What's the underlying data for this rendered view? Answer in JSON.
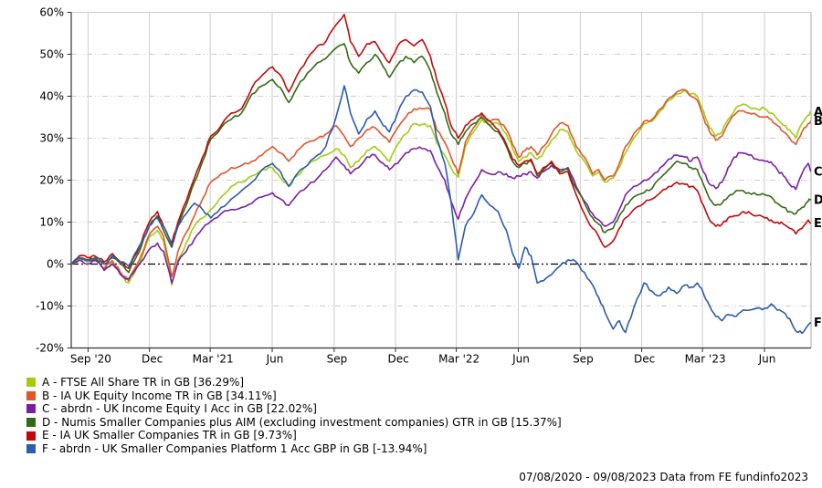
{
  "chart": {
    "y_axis": {
      "values": [
        60,
        50,
        40,
        30,
        20,
        10,
        0,
        -10,
        -20
      ],
      "labels": [
        "60%",
        "50%",
        "40%",
        "30%",
        "20%",
        "10%",
        "0%",
        "-10%",
        "-20%"
      ]
    },
    "x_axis": {
      "ticks": [
        {
          "t": 0.82,
          "label": "Sep '20"
        },
        {
          "t": 3.81,
          "label": "Dec"
        },
        {
          "t": 6.77,
          "label": "Mar '21"
        },
        {
          "t": 9.79,
          "label": "Jun"
        },
        {
          "t": 12.81,
          "label": "Sep"
        },
        {
          "t": 15.8,
          "label": "Dec"
        },
        {
          "t": 18.76,
          "label": "Mar '22"
        },
        {
          "t": 21.78,
          "label": "Jun"
        },
        {
          "t": 24.8,
          "label": "Sep"
        },
        {
          "t": 27.79,
          "label": "Dec"
        },
        {
          "t": 30.75,
          "label": "Mar '23"
        },
        {
          "t": 33.77,
          "label": "Jun"
        }
      ]
    },
    "colors": {
      "grid": "#cccccc",
      "zero_line": "#000000",
      "axis": "#333333",
      "top_border": "#cccccc",
      "right_border": "#aaaaaa"
    }
  },
  "chart_data": {
    "type": "line",
    "title": "",
    "x_unit": "months since 07/08/2020",
    "x_range": [
      0,
      36.04
    ],
    "ylim": [
      -20,
      60
    ],
    "grid": true,
    "legend_position": "bottom-left",
    "x": [
      0,
      0.4,
      0.8,
      1.2,
      1.6,
      2.0,
      2.4,
      2.8,
      3.1,
      3.4,
      3.8,
      4.2,
      4.5,
      4.9,
      5.2,
      5.6,
      6.0,
      6.4,
      6.8,
      7.3,
      7.8,
      8.3,
      8.8,
      9.3,
      9.8,
      10.2,
      10.6,
      11.0,
      11.5,
      12.0,
      12.4,
      12.9,
      13.3,
      13.6,
      14.0,
      14.4,
      14.8,
      15.2,
      15.5,
      15.9,
      16.3,
      16.7,
      17.1,
      17.5,
      17.8,
      18.2,
      18.5,
      18.85,
      19.2,
      19.6,
      20.0,
      20.4,
      20.8,
      21.2,
      21.5,
      21.8,
      22.1,
      22.4,
      22.7,
      23.0,
      23.4,
      23.8,
      24.2,
      24.6,
      25.0,
      25.4,
      25.7,
      26.0,
      26.4,
      26.7,
      27.0,
      27.4,
      27.9,
      28.3,
      28.7,
      29.1,
      29.5,
      29.9,
      30.2,
      30.5,
      30.8,
      31.1,
      31.4,
      31.7,
      32.0,
      32.3,
      32.6,
      33.0,
      33.4,
      33.8,
      34.1,
      34.4,
      34.7,
      35.0,
      35.3,
      35.6,
      35.9,
      36.04
    ],
    "series": [
      {
        "id": "A",
        "name": "FTSE All Share TR in GB",
        "final_return_pct": 36.29,
        "color": "#9fce10",
        "values": [
          0,
          1.5,
          0.5,
          1.8,
          -1.5,
          0.5,
          -2.5,
          -4.5,
          -2.0,
          1.0,
          6.5,
          8.0,
          5.5,
          -5.0,
          1.0,
          5.0,
          9.0,
          11.0,
          13.0,
          16.0,
          18.5,
          19.5,
          21.0,
          22.5,
          23.0,
          20.5,
          18.5,
          21.0,
          23.5,
          25.0,
          26.0,
          27.5,
          26.0,
          23.0,
          24.5,
          27.0,
          28.0,
          26.0,
          24.5,
          28.5,
          31.0,
          33.5,
          33.3,
          33.0,
          29.0,
          26.0,
          23.0,
          20.7,
          28.0,
          31.5,
          34.5,
          33.0,
          33.5,
          31.0,
          27.5,
          24.5,
          25.5,
          26.5,
          25.0,
          26.5,
          29.5,
          32.0,
          31.5,
          27.0,
          24.5,
          21.0,
          22.0,
          19.5,
          20.5,
          23.0,
          26.5,
          30.0,
          33.5,
          34.0,
          36.5,
          39.0,
          40.5,
          41.5,
          40.5,
          40.0,
          36.5,
          32.5,
          30.5,
          31.5,
          34.5,
          36.5,
          37.8,
          37.5,
          37.0,
          37.0,
          36.0,
          34.5,
          33.0,
          32.0,
          30.0,
          33.5,
          35.5,
          36.29
        ]
      },
      {
        "id": "B",
        "name": "IA UK Equity Income TR in GB",
        "final_return_pct": 34.11,
        "color": "#e0562a",
        "values": [
          0,
          1.5,
          0.8,
          1.2,
          -1.0,
          0.8,
          -2.0,
          -4.0,
          -1.0,
          2.0,
          7.0,
          9.0,
          6.5,
          -3.0,
          3.0,
          7.5,
          11.5,
          15.5,
          19.5,
          21.5,
          23.0,
          23.5,
          24.5,
          26.0,
          28.0,
          26.5,
          24.5,
          27.0,
          29.0,
          30.0,
          31.0,
          33.0,
          30.5,
          28.0,
          30.0,
          32.0,
          32.5,
          30.5,
          29.0,
          32.5,
          35.0,
          37.0,
          37.0,
          36.8,
          32.0,
          29.0,
          25.5,
          21.5,
          29.0,
          32.5,
          35.5,
          34.0,
          34.5,
          32.0,
          28.5,
          25.5,
          27.0,
          28.0,
          26.0,
          28.0,
          31.0,
          33.5,
          33.0,
          28.0,
          25.5,
          21.5,
          22.5,
          20.0,
          21.0,
          24.0,
          28.0,
          31.0,
          34.0,
          34.5,
          37.0,
          39.5,
          41.0,
          41.5,
          40.0,
          39.0,
          35.0,
          31.5,
          29.5,
          30.5,
          33.5,
          35.5,
          36.5,
          36.0,
          35.5,
          35.0,
          34.5,
          33.0,
          31.5,
          30.0,
          28.5,
          31.5,
          33.5,
          34.11
        ]
      },
      {
        "id": "C",
        "name": "abrdn - UK Income Equity I Acc in GB",
        "final_return_pct": 22.02,
        "color": "#7b1fa2",
        "values": [
          0,
          1.0,
          0.0,
          0.8,
          -1.5,
          0.0,
          -2.5,
          -3.5,
          -1.5,
          0.5,
          3.5,
          5.0,
          3.0,
          -4.5,
          0.5,
          3.0,
          6.0,
          8.5,
          10.2,
          12.0,
          13.0,
          13.5,
          14.5,
          16.0,
          17.0,
          15.5,
          14.0,
          16.5,
          18.5,
          20.5,
          22.5,
          25.5,
          23.5,
          21.5,
          23.0,
          25.5,
          26.0,
          24.0,
          22.5,
          24.0,
          26.5,
          27.5,
          27.5,
          27.0,
          23.5,
          20.0,
          15.0,
          10.7,
          15.5,
          19.0,
          22.5,
          21.5,
          22.0,
          21.5,
          20.5,
          21.0,
          21.5,
          22.0,
          20.5,
          22.0,
          23.5,
          22.5,
          23.0,
          18.5,
          15.0,
          12.0,
          10.5,
          9.0,
          10.0,
          13.0,
          16.5,
          18.5,
          20.0,
          21.0,
          23.0,
          25.0,
          26.0,
          25.5,
          24.5,
          25.5,
          22.0,
          19.0,
          18.0,
          19.5,
          23.0,
          25.5,
          26.5,
          26.0,
          25.0,
          24.5,
          24.3,
          22.5,
          21.0,
          19.0,
          17.8,
          21.5,
          24.0,
          22.02
        ]
      },
      {
        "id": "D",
        "name": "Numis Smaller Companies plus AIM (excluding investment companies) GTR in GB",
        "final_return_pct": 15.37,
        "color": "#336b12",
        "values": [
          0,
          1.5,
          0.8,
          1.2,
          0.0,
          1.5,
          0.0,
          -2.0,
          1.0,
          4.0,
          9.0,
          11.5,
          8.0,
          4.0,
          9.0,
          14.0,
          19.5,
          24.5,
          29.8,
          32.5,
          34.5,
          36.0,
          40.5,
          42.5,
          44.0,
          42.0,
          38.5,
          42.0,
          45.5,
          48.0,
          49.0,
          51.5,
          52.5,
          48.0,
          45.5,
          48.0,
          50.0,
          47.0,
          44.5,
          47.5,
          49.5,
          48.0,
          49.5,
          46.0,
          41.0,
          36.0,
          31.0,
          28.5,
          31.5,
          33.5,
          35.0,
          33.0,
          31.5,
          28.0,
          24.5,
          23.0,
          24.0,
          24.5,
          21.0,
          22.5,
          24.0,
          22.0,
          22.5,
          18.0,
          14.5,
          11.0,
          9.5,
          7.5,
          8.5,
          11.5,
          14.0,
          16.0,
          17.0,
          18.0,
          20.5,
          22.5,
          24.5,
          24.0,
          23.0,
          22.5,
          19.0,
          15.5,
          14.0,
          14.5,
          16.0,
          17.0,
          17.5,
          17.0,
          16.5,
          16.5,
          16.0,
          14.5,
          13.5,
          12.5,
          12.0,
          13.5,
          15.0,
          15.37
        ]
      },
      {
        "id": "E",
        "name": "IA UK Smaller Companies TR in GB",
        "final_return_pct": 9.73,
        "color": "#c00a0a",
        "values": [
          0,
          2.0,
          1.5,
          1.8,
          0.5,
          2.5,
          0.5,
          -1.0,
          2.0,
          5.0,
          10.0,
          12.5,
          9.0,
          5.0,
          10.0,
          15.0,
          20.5,
          25.5,
          30.5,
          33.0,
          36.0,
          37.0,
          42.0,
          45.0,
          47.0,
          45.0,
          41.0,
          45.0,
          49.0,
          52.0,
          53.0,
          57.0,
          59.5,
          53.0,
          49.5,
          52.5,
          53.0,
          50.0,
          48.0,
          52.0,
          53.5,
          52.0,
          53.5,
          49.5,
          44.0,
          38.5,
          33.0,
          30.0,
          33.0,
          34.5,
          36.0,
          34.0,
          32.0,
          28.5,
          25.0,
          23.5,
          24.5,
          25.0,
          21.5,
          23.0,
          24.5,
          21.5,
          22.0,
          16.5,
          12.0,
          8.5,
          6.5,
          4.0,
          5.5,
          8.5,
          11.0,
          13.0,
          14.5,
          15.5,
          17.0,
          18.5,
          19.5,
          19.0,
          18.5,
          17.5,
          14.0,
          10.5,
          9.0,
          9.5,
          11.0,
          11.5,
          12.0,
          12.5,
          11.5,
          11.0,
          10.5,
          10.0,
          9.5,
          8.5,
          7.2,
          8.5,
          10.5,
          9.73
        ]
      },
      {
        "id": "F",
        "name": "abrdn - UK Smaller Companies Platform 1 Acc GBP in GB",
        "final_return_pct": -13.94,
        "color": "#2b5cad",
        "values": [
          0,
          1.5,
          1.0,
          1.5,
          0.0,
          2.0,
          0.5,
          -0.5,
          2.5,
          5.0,
          9.0,
          11.0,
          9.0,
          4.5,
          9.0,
          12.0,
          14.5,
          13.0,
          11.0,
          13.5,
          15.5,
          17.5,
          19.5,
          22.5,
          24.0,
          22.0,
          18.5,
          21.5,
          23.5,
          26.0,
          28.0,
          35.0,
          42.5,
          36.0,
          31.0,
          34.5,
          36.5,
          33.0,
          31.5,
          36.0,
          40.0,
          41.5,
          41.0,
          37.5,
          30.0,
          24.0,
          15.0,
          1.0,
          9.0,
          12.0,
          16.5,
          14.0,
          12.5,
          8.0,
          2.5,
          -1.0,
          4.0,
          2.0,
          -4.5,
          -4.0,
          -2.5,
          -0.5,
          1.0,
          0.5,
          -2.0,
          -5.0,
          -8.0,
          -11.5,
          -15.5,
          -13.5,
          -16.3,
          -10.5,
          -4.5,
          -6.5,
          -7.5,
          -5.5,
          -7.0,
          -5.0,
          -5.5,
          -4.5,
          -7.0,
          -10.0,
          -12.5,
          -13.5,
          -12.0,
          -12.5,
          -11.5,
          -11.0,
          -10.5,
          -10.5,
          -9.5,
          -11.0,
          -11.5,
          -13.0,
          -16.0,
          -16.5,
          -14.5,
          -13.94
        ]
      }
    ]
  },
  "legend": {
    "items": [
      {
        "letter": "A",
        "color": "#9fce10",
        "label": "A - FTSE All Share TR in GB [36.29%]"
      },
      {
        "letter": "B",
        "color": "#e0562a",
        "label": "B - IA UK Equity Income TR in GB [34.11%]"
      },
      {
        "letter": "C",
        "color": "#7b1fa2",
        "label": "C - abrdn - UK Income Equity I Acc in GB [22.02%]"
      },
      {
        "letter": "D",
        "color": "#336b12",
        "label": "D - Numis Smaller Companies plus AIM (excluding investment companies) GTR in GB [15.37%]"
      },
      {
        "letter": "E",
        "color": "#c00a0a",
        "label": "E - IA UK Smaller Companies TR in GB [9.73%]"
      },
      {
        "letter": "F",
        "color": "#2b5cad",
        "label": "F - abrdn - UK Smaller Companies Platform 1 Acc GBP in GB [-13.94%]"
      }
    ]
  },
  "footer": {
    "text": "07/08/2020 - 09/08/2023 Data from FE fundinfo2023"
  }
}
